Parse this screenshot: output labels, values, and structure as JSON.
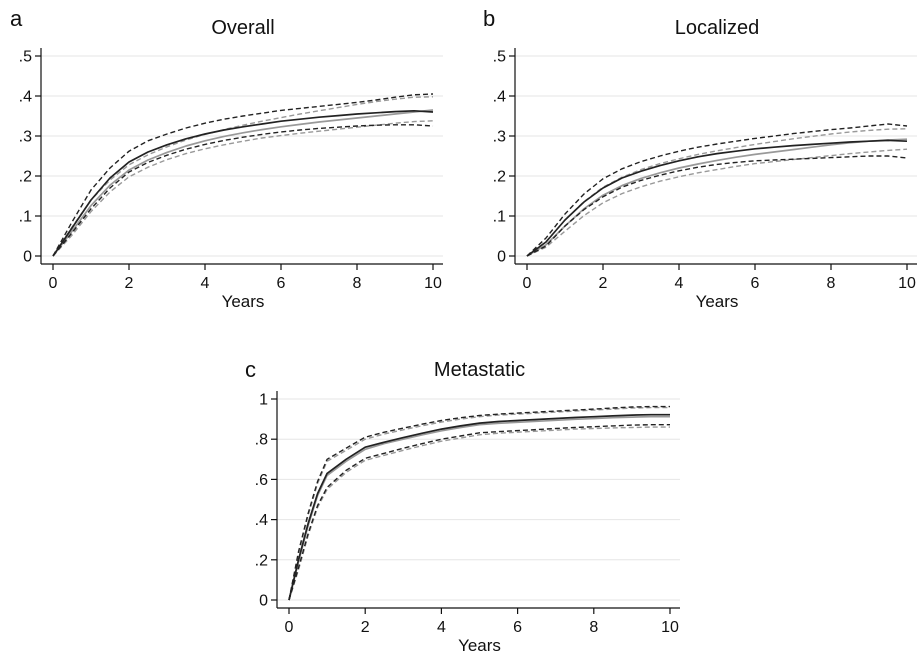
{
  "chart_data": [
    {
      "panel": "a",
      "type": "line",
      "title": "Overall",
      "xlabel": "Years",
      "ylabel": "",
      "xlim": [
        0,
        10
      ],
      "ylim": [
        0,
        0.5
      ],
      "xticks": [
        0,
        2,
        4,
        6,
        8,
        10
      ],
      "xtick_labels": [
        "0",
        "2",
        "4",
        "6",
        "8",
        "10"
      ],
      "yticks": [
        0,
        0.1,
        0.2,
        0.3,
        0.4,
        0.5
      ],
      "ytick_labels": [
        "0",
        ".1",
        ".2",
        ".3",
        ".4",
        ".5"
      ],
      "grid": true,
      "x": [
        0,
        0.5,
        1,
        1.5,
        2,
        2.5,
        3,
        3.5,
        4,
        4.5,
        5,
        5.5,
        6,
        6.5,
        7,
        7.5,
        8,
        8.5,
        9,
        9.5,
        10
      ],
      "series": [
        {
          "color": "#222222",
          "style": "solid",
          "values": [
            0,
            0.07,
            0.14,
            0.195,
            0.235,
            0.26,
            0.278,
            0.293,
            0.305,
            0.315,
            0.323,
            0.33,
            0.337,
            0.342,
            0.347,
            0.351,
            0.355,
            0.358,
            0.361,
            0.363,
            0.36
          ]
        },
        {
          "color": "#222222",
          "style": "dashed",
          "values": [
            0,
            0.085,
            0.165,
            0.22,
            0.262,
            0.288,
            0.305,
            0.32,
            0.332,
            0.342,
            0.35,
            0.357,
            0.364,
            0.369,
            0.374,
            0.379,
            0.384,
            0.39,
            0.397,
            0.403,
            0.405
          ]
        },
        {
          "color": "#222222",
          "style": "dashed",
          "values": [
            0,
            0.058,
            0.118,
            0.17,
            0.21,
            0.234,
            0.252,
            0.267,
            0.279,
            0.289,
            0.297,
            0.304,
            0.31,
            0.315,
            0.319,
            0.322,
            0.325,
            0.327,
            0.328,
            0.328,
            0.325
          ]
        },
        {
          "color": "#999999",
          "style": "solid",
          "values": [
            0,
            0.062,
            0.126,
            0.177,
            0.215,
            0.24,
            0.259,
            0.275,
            0.288,
            0.299,
            0.308,
            0.316,
            0.323,
            0.329,
            0.335,
            0.34,
            0.345,
            0.35,
            0.355,
            0.36,
            0.365
          ]
        },
        {
          "color": "#999999",
          "style": "dashed",
          "values": [
            0,
            0.072,
            0.14,
            0.19,
            0.228,
            0.253,
            0.273,
            0.29,
            0.304,
            0.316,
            0.327,
            0.337,
            0.346,
            0.355,
            0.363,
            0.371,
            0.379,
            0.386,
            0.392,
            0.397,
            0.398
          ]
        },
        {
          "color": "#999999",
          "style": "dashed",
          "values": [
            0,
            0.052,
            0.111,
            0.16,
            0.198,
            0.222,
            0.241,
            0.256,
            0.268,
            0.278,
            0.287,
            0.295,
            0.301,
            0.307,
            0.312,
            0.317,
            0.322,
            0.327,
            0.332,
            0.336,
            0.338
          ]
        }
      ]
    },
    {
      "panel": "b",
      "type": "line",
      "title": "Localized",
      "xlabel": "Years",
      "ylabel": "",
      "xlim": [
        0,
        10
      ],
      "ylim": [
        0,
        0.5
      ],
      "xticks": [
        0,
        2,
        4,
        6,
        8,
        10
      ],
      "xtick_labels": [
        "0",
        "2",
        "4",
        "6",
        "8",
        "10"
      ],
      "yticks": [
        0,
        0.1,
        0.2,
        0.3,
        0.4,
        0.5
      ],
      "ytick_labels": [
        "0",
        ".1",
        ".2",
        ".3",
        ".4",
        ".5"
      ],
      "grid": true,
      "x": [
        0,
        0.5,
        1,
        1.5,
        2,
        2.5,
        3,
        3.5,
        4,
        4.5,
        5,
        5.5,
        6,
        6.5,
        7,
        7.5,
        8,
        8.5,
        9,
        9.5,
        10
      ],
      "series": [
        {
          "color": "#222222",
          "style": "solid",
          "values": [
            0,
            0.035,
            0.09,
            0.135,
            0.17,
            0.195,
            0.212,
            0.226,
            0.238,
            0.248,
            0.256,
            0.262,
            0.268,
            0.272,
            0.276,
            0.279,
            0.282,
            0.285,
            0.287,
            0.289,
            0.287
          ]
        },
        {
          "color": "#222222",
          "style": "dashed",
          "values": [
            0,
            0.045,
            0.105,
            0.155,
            0.193,
            0.218,
            0.236,
            0.25,
            0.262,
            0.272,
            0.28,
            0.287,
            0.294,
            0.3,
            0.306,
            0.311,
            0.316,
            0.32,
            0.325,
            0.33,
            0.325
          ]
        },
        {
          "color": "#222222",
          "style": "dashed",
          "values": [
            0,
            0.025,
            0.075,
            0.116,
            0.148,
            0.172,
            0.189,
            0.202,
            0.213,
            0.222,
            0.229,
            0.234,
            0.238,
            0.24,
            0.242,
            0.244,
            0.246,
            0.248,
            0.25,
            0.25,
            0.245
          ]
        },
        {
          "color": "#999999",
          "style": "solid",
          "values": [
            0,
            0.028,
            0.075,
            0.118,
            0.152,
            0.176,
            0.194,
            0.208,
            0.22,
            0.23,
            0.239,
            0.247,
            0.254,
            0.26,
            0.266,
            0.272,
            0.278,
            0.283,
            0.287,
            0.29,
            0.292
          ]
        },
        {
          "color": "#999999",
          "style": "dashed",
          "values": [
            0,
            0.036,
            0.09,
            0.136,
            0.172,
            0.197,
            0.216,
            0.231,
            0.243,
            0.254,
            0.263,
            0.271,
            0.279,
            0.286,
            0.293,
            0.299,
            0.305,
            0.31,
            0.314,
            0.317,
            0.318
          ]
        },
        {
          "color": "#999999",
          "style": "dashed",
          "values": [
            0,
            0.022,
            0.062,
            0.101,
            0.133,
            0.156,
            0.173,
            0.187,
            0.198,
            0.208,
            0.216,
            0.224,
            0.231,
            0.236,
            0.241,
            0.246,
            0.251,
            0.256,
            0.26,
            0.264,
            0.267
          ]
        }
      ]
    },
    {
      "panel": "c",
      "type": "line",
      "title": "Metastatic",
      "xlabel": "Years",
      "ylabel": "",
      "xlim": [
        0,
        10
      ],
      "ylim": [
        0,
        1
      ],
      "xticks": [
        0,
        2,
        4,
        6,
        8,
        10
      ],
      "xtick_labels": [
        "0",
        "2",
        "4",
        "6",
        "8",
        "10"
      ],
      "yticks": [
        0,
        0.2,
        0.4,
        0.6,
        0.8,
        1
      ],
      "ytick_labels": [
        "0",
        ".2",
        ".4",
        ".6",
        ".8",
        "1"
      ],
      "grid": true,
      "x": [
        0,
        0.25,
        0.5,
        0.75,
        1,
        1.5,
        2,
        2.5,
        3,
        3.5,
        4,
        4.5,
        5,
        5.5,
        6,
        6.5,
        7,
        7.5,
        8,
        8.5,
        9,
        9.5,
        10
      ],
      "series": [
        {
          "color": "#222222",
          "style": "solid",
          "values": [
            0,
            0.2,
            0.38,
            0.53,
            0.63,
            0.7,
            0.76,
            0.785,
            0.808,
            0.83,
            0.85,
            0.866,
            0.88,
            0.888,
            0.893,
            0.898,
            0.903,
            0.908,
            0.912,
            0.916,
            0.92,
            0.922,
            0.922
          ]
        },
        {
          "color": "#222222",
          "style": "dashed",
          "values": [
            0,
            0.24,
            0.43,
            0.59,
            0.7,
            0.755,
            0.81,
            0.835,
            0.855,
            0.875,
            0.893,
            0.907,
            0.918,
            0.925,
            0.93,
            0.935,
            0.94,
            0.945,
            0.95,
            0.955,
            0.96,
            0.962,
            0.962
          ]
        },
        {
          "color": "#222222",
          "style": "dashed",
          "values": [
            0,
            0.16,
            0.33,
            0.47,
            0.56,
            0.645,
            0.705,
            0.73,
            0.755,
            0.778,
            0.8,
            0.816,
            0.832,
            0.838,
            0.843,
            0.848,
            0.853,
            0.858,
            0.862,
            0.866,
            0.87,
            0.872,
            0.872
          ]
        },
        {
          "color": "#999999",
          "style": "solid",
          "values": [
            0,
            0.19,
            0.37,
            0.52,
            0.62,
            0.69,
            0.75,
            0.778,
            0.8,
            0.822,
            0.842,
            0.858,
            0.872,
            0.879,
            0.884,
            0.889,
            0.894,
            0.899,
            0.903,
            0.907,
            0.91,
            0.912,
            0.912
          ]
        },
        {
          "color": "#999999",
          "style": "dashed",
          "values": [
            0,
            0.23,
            0.42,
            0.58,
            0.69,
            0.745,
            0.8,
            0.826,
            0.847,
            0.867,
            0.885,
            0.9,
            0.912,
            0.92,
            0.925,
            0.93,
            0.935,
            0.94,
            0.945,
            0.95,
            0.955,
            0.957,
            0.957
          ]
        },
        {
          "color": "#999999",
          "style": "dashed",
          "values": [
            0,
            0.15,
            0.32,
            0.46,
            0.55,
            0.635,
            0.695,
            0.72,
            0.745,
            0.768,
            0.79,
            0.806,
            0.822,
            0.83,
            0.835,
            0.84,
            0.845,
            0.85,
            0.853,
            0.856,
            0.858,
            0.86,
            0.86
          ]
        }
      ]
    }
  ]
}
